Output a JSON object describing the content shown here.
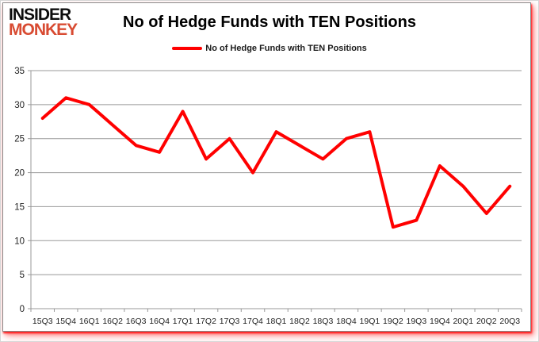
{
  "logo": {
    "line1": "INSIDER",
    "line2": "MONKEY"
  },
  "header": {
    "title": "No of Hedge Funds with TEN Positions"
  },
  "legend": {
    "label": "No of Hedge Funds with TEN Positions",
    "color": "#ff0000"
  },
  "colors": {
    "line_red": "#ff0000",
    "logo_red": "#d84b32",
    "grid_gray": "#999999",
    "axis_text": "#1f1f1f"
  },
  "chart_data": {
    "type": "line",
    "title": "No of Hedge Funds with TEN Positions",
    "categories": [
      "15Q3",
      "15Q4",
      "16Q1",
      "16Q2",
      "16Q3",
      "16Q4",
      "17Q1",
      "17Q2",
      "17Q3",
      "17Q4",
      "18Q1",
      "18Q2",
      "18Q3",
      "18Q4",
      "19Q1",
      "19Q2",
      "19Q3",
      "19Q4",
      "20Q1",
      "20Q2",
      "20Q3"
    ],
    "series": [
      {
        "name": "No of Hedge Funds with TEN Positions",
        "color": "#ff0000",
        "values": [
          28,
          31,
          30,
          27,
          24,
          23,
          29,
          22,
          25,
          20,
          26,
          24,
          22,
          25,
          26,
          12,
          13,
          21,
          18,
          14,
          18
        ]
      }
    ],
    "xlabel": "",
    "ylabel": "",
    "ylim": [
      0,
      35
    ],
    "ytick_step": 5,
    "grid": "horizontal",
    "legend_position": "top-center"
  }
}
